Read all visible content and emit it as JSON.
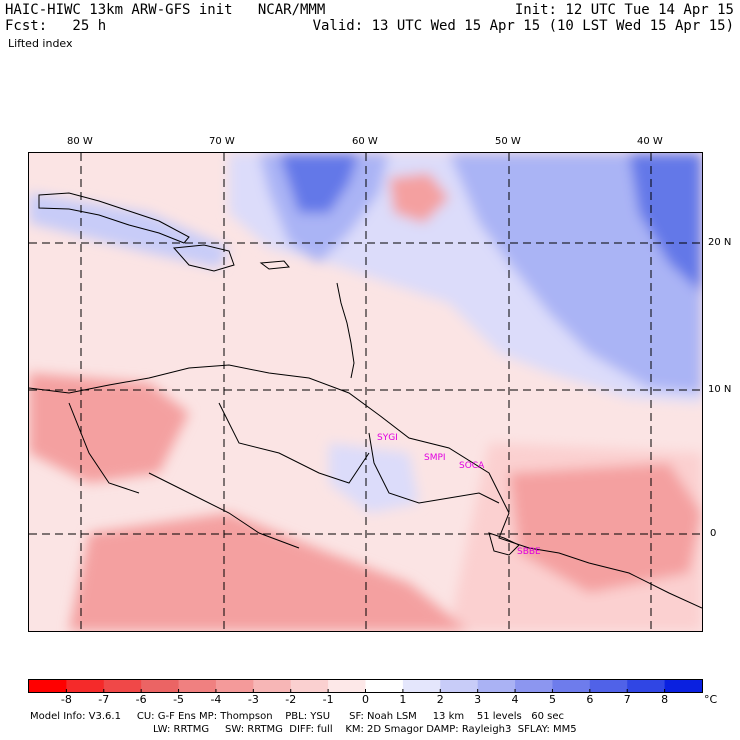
{
  "header": {
    "model_title": "HAIC-HIWC 13km ARW-GFS init   NCAR/MMM",
    "forecast": "Fcst:   25 h",
    "init": "Init: 12 UTC Tue 14 Apr 15",
    "valid": "Valid: 13 UTC Wed 15 Apr 15 (10 LST Wed 15 Apr 15)",
    "field": "Lifted index"
  },
  "map": {
    "lon_labels": [
      "80 W",
      "70 W",
      "60 W",
      "50 W",
      "40 W"
    ],
    "lat_labels": [
      "20 N",
      "10 N",
      "0"
    ],
    "country_labels": [
      "SYGI",
      "SMPI",
      "SOCA",
      "SBBE"
    ],
    "colors": {
      "neutral": "#fff0f0",
      "stable_light": "#dcdcfa",
      "stable_mid": "#aab4f5",
      "stable_strong": "#6478e8",
      "unstable_light": "#fbd0d0",
      "unstable_mid": "#f4a0a0",
      "unstable_strong": "#e86060"
    }
  },
  "colorbar": {
    "labels": [
      "-8",
      "-7",
      "-6",
      "-5",
      "-4",
      "-3",
      "-2",
      "-1",
      "0",
      "1",
      "2",
      "3",
      "4",
      "5",
      "6",
      "7",
      "8"
    ],
    "unit": "°C",
    "colors": [
      "#ff0000",
      "#f52a2a",
      "#f04848",
      "#eb6464",
      "#f08080",
      "#f49a9a",
      "#f7b6b6",
      "#fad0d0",
      "#fde8e8",
      "#ffffff",
      "#e4e6fc",
      "#c8ccf8",
      "#aab2f4",
      "#8c96f0",
      "#6e7cec",
      "#5062e8",
      "#3046e4",
      "#0a20e0"
    ]
  },
  "footer": {
    "line1": "Model Info: V3.6.1     CU: G-F Ens MP: Thompson    PBL: YSU      SF: Noah LSM     13 km    51 levels   60 sec",
    "line2": "LW: RRTMG     SW: RRTMG  DIFF: full    KM: 2D Smagor DAMP: Rayleigh3  SFLAY: MM5"
  }
}
